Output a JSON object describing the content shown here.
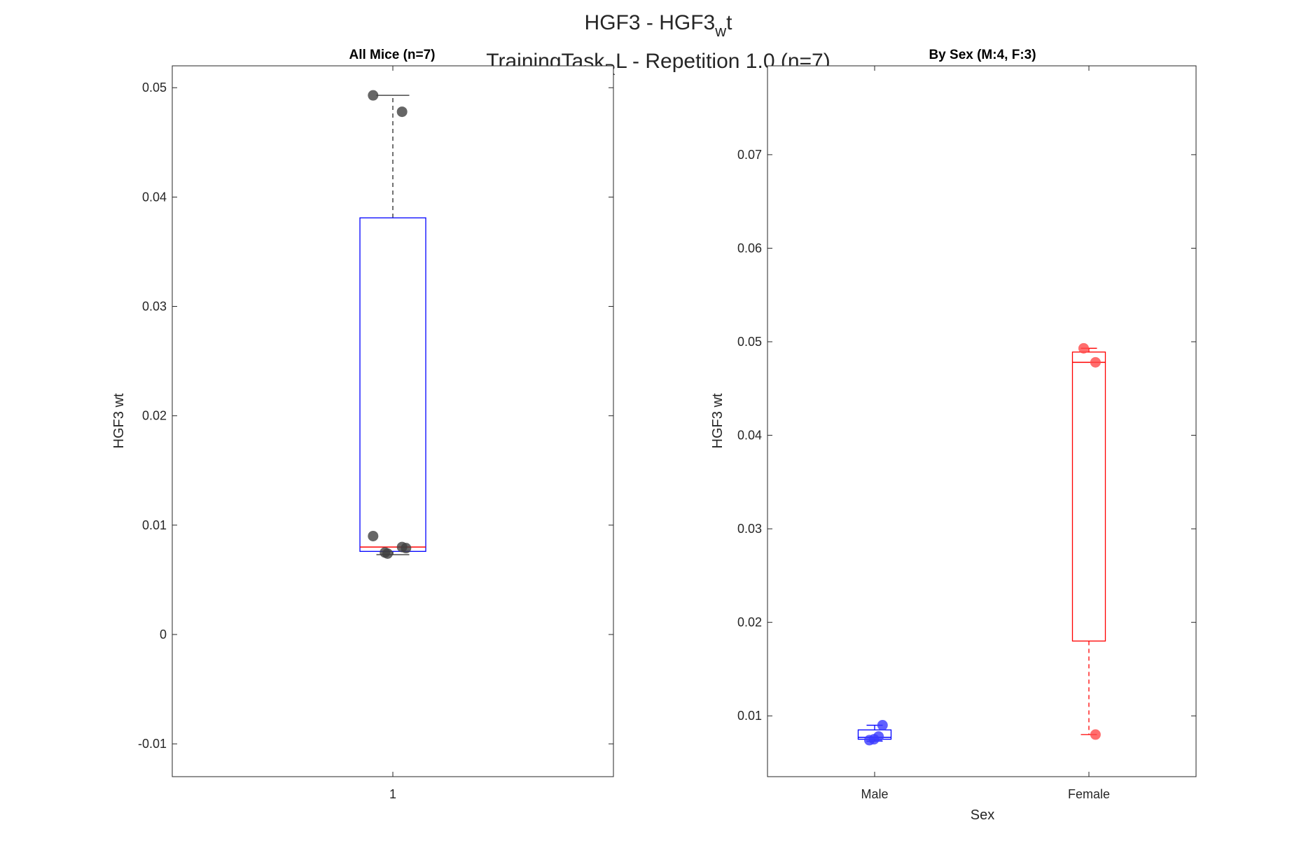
{
  "figure": {
    "title_line1_main": "HGF3 - HGF3",
    "title_line1_sub": "w",
    "title_line1_tail": "t",
    "title_line2_main": "TrainingTask",
    "title_line2_sub": "R",
    "title_line2_tail": "L - Repetition 1.0 (n=7)"
  },
  "chart_data": [
    {
      "type": "box",
      "title": "All Mice (n=7)",
      "ylabel": "HGF3 wt",
      "xlabel": "",
      "categories": [
        "1"
      ],
      "ylim": [
        -0.013,
        0.052
      ],
      "yticks": [
        -0.01,
        0,
        0.01,
        0.02,
        0.03,
        0.04,
        0.05
      ],
      "ytick_labels": [
        "-0.01",
        "0",
        "0.01",
        "0.02",
        "0.03",
        "0.04",
        "0.05"
      ],
      "grid": false,
      "boxes": [
        {
          "category": "1",
          "q1": 0.0076,
          "median": 0.008,
          "q3": 0.0381,
          "whisker_low": 0.0073,
          "whisker_high": 0.0493,
          "color": "#0000ff",
          "median_color": "#ff0000"
        }
      ],
      "points": [
        {
          "category": "1",
          "jitter": -0.3,
          "y": 0.0493
        },
        {
          "category": "1",
          "jitter": 0.14,
          "y": 0.0478
        },
        {
          "category": "1",
          "jitter": -0.3,
          "y": 0.009
        },
        {
          "category": "1",
          "jitter": 0.14,
          "y": 0.008
        },
        {
          "category": "1",
          "jitter": 0.2,
          "y": 0.0079
        },
        {
          "category": "1",
          "jitter": -0.12,
          "y": 0.0075
        },
        {
          "category": "1",
          "jitter": -0.08,
          "y": 0.0074
        }
      ],
      "point_color": "#404040"
    },
    {
      "type": "box",
      "title": "By Sex (M:4, F:3)",
      "ylabel": "HGF3 wt",
      "xlabel": "Sex",
      "categories": [
        "Male",
        "Female"
      ],
      "ylim": [
        0.0035,
        0.0795
      ],
      "yticks": [
        0.01,
        0.02,
        0.03,
        0.04,
        0.05,
        0.06,
        0.07
      ],
      "ytick_labels": [
        "0.01",
        "0.02",
        "0.03",
        "0.04",
        "0.05",
        "0.06",
        "0.07"
      ],
      "grid": false,
      "boxes": [
        {
          "category": "Male",
          "q1": 0.0075,
          "median": 0.0077,
          "q3": 0.0085,
          "whisker_low": 0.0073,
          "whisker_high": 0.009,
          "color": "#0000ff",
          "median_color": "#0000ff"
        },
        {
          "category": "Female",
          "q1": 0.018,
          "median": 0.0478,
          "q3": 0.0489,
          "whisker_low": 0.008,
          "whisker_high": 0.0493,
          "color": "#ff0000",
          "median_color": "#ff0000"
        }
      ],
      "points": [
        {
          "category": "Male",
          "jitter": 0.24,
          "y": 0.009,
          "color": "#3a3aff"
        },
        {
          "category": "Male",
          "jitter": 0.12,
          "y": 0.0078,
          "color": "#3a3aff"
        },
        {
          "category": "Male",
          "jitter": -0.02,
          "y": 0.0075,
          "color": "#3a3aff"
        },
        {
          "category": "Male",
          "jitter": -0.16,
          "y": 0.0074,
          "color": "#3a3aff"
        },
        {
          "category": "Female",
          "jitter": -0.16,
          "y": 0.0493,
          "color": "#ff4a4a"
        },
        {
          "category": "Female",
          "jitter": 0.2,
          "y": 0.0478,
          "color": "#ff4a4a"
        },
        {
          "category": "Female",
          "jitter": 0.2,
          "y": 0.008,
          "color": "#ff4a4a"
        }
      ]
    }
  ]
}
